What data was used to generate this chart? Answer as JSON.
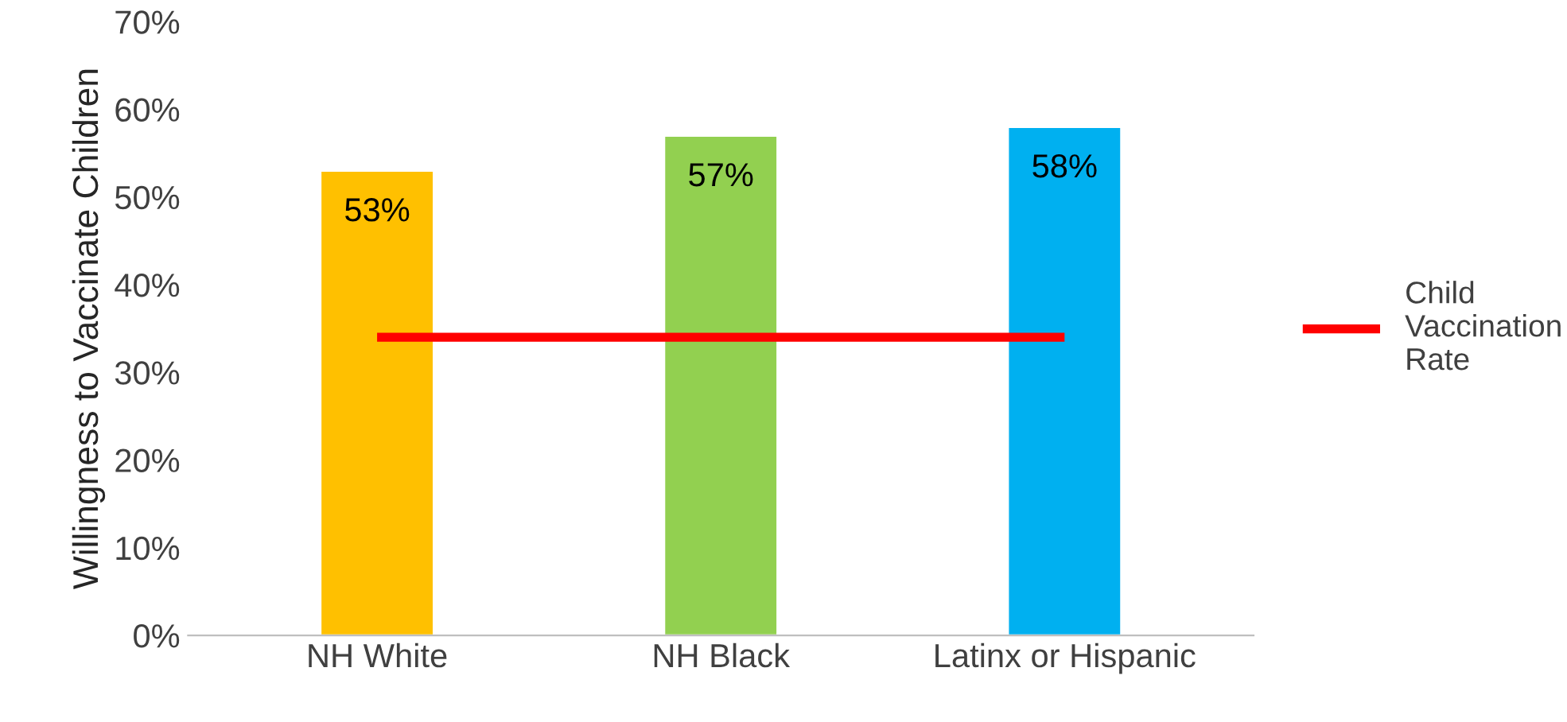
{
  "chart_data": {
    "type": "bar",
    "ylabel": "Willingness to Vaccinate Children",
    "categories": [
      "NH White",
      "NH Black",
      "Latinx or Hispanic"
    ],
    "series": [
      {
        "colors": [
          "#ffc000",
          "#92d050",
          "#00b0f0"
        ],
        "values": [
          53,
          57,
          58
        ],
        "value_labels": [
          "53%",
          "57%",
          "58%"
        ]
      },
      {
        "type": "line",
        "name": "Child Vaccination Rate",
        "color": "#ff0000",
        "values": [
          34,
          34,
          34
        ],
        "marker": "none",
        "line_style": "solid"
      }
    ],
    "ylim": [
      0,
      70
    ],
    "yticks": [
      {
        "value": 0,
        "label": "0%"
      },
      {
        "value": 10,
        "label": "10%"
      },
      {
        "value": 20,
        "label": "20%"
      },
      {
        "value": 30,
        "label": "30%"
      },
      {
        "value": 40,
        "label": "40%"
      },
      {
        "value": 50,
        "label": "50%"
      },
      {
        "value": 60,
        "label": "60%"
      },
      {
        "value": 70,
        "label": "70%"
      }
    ],
    "grid": false,
    "legend": "right"
  }
}
